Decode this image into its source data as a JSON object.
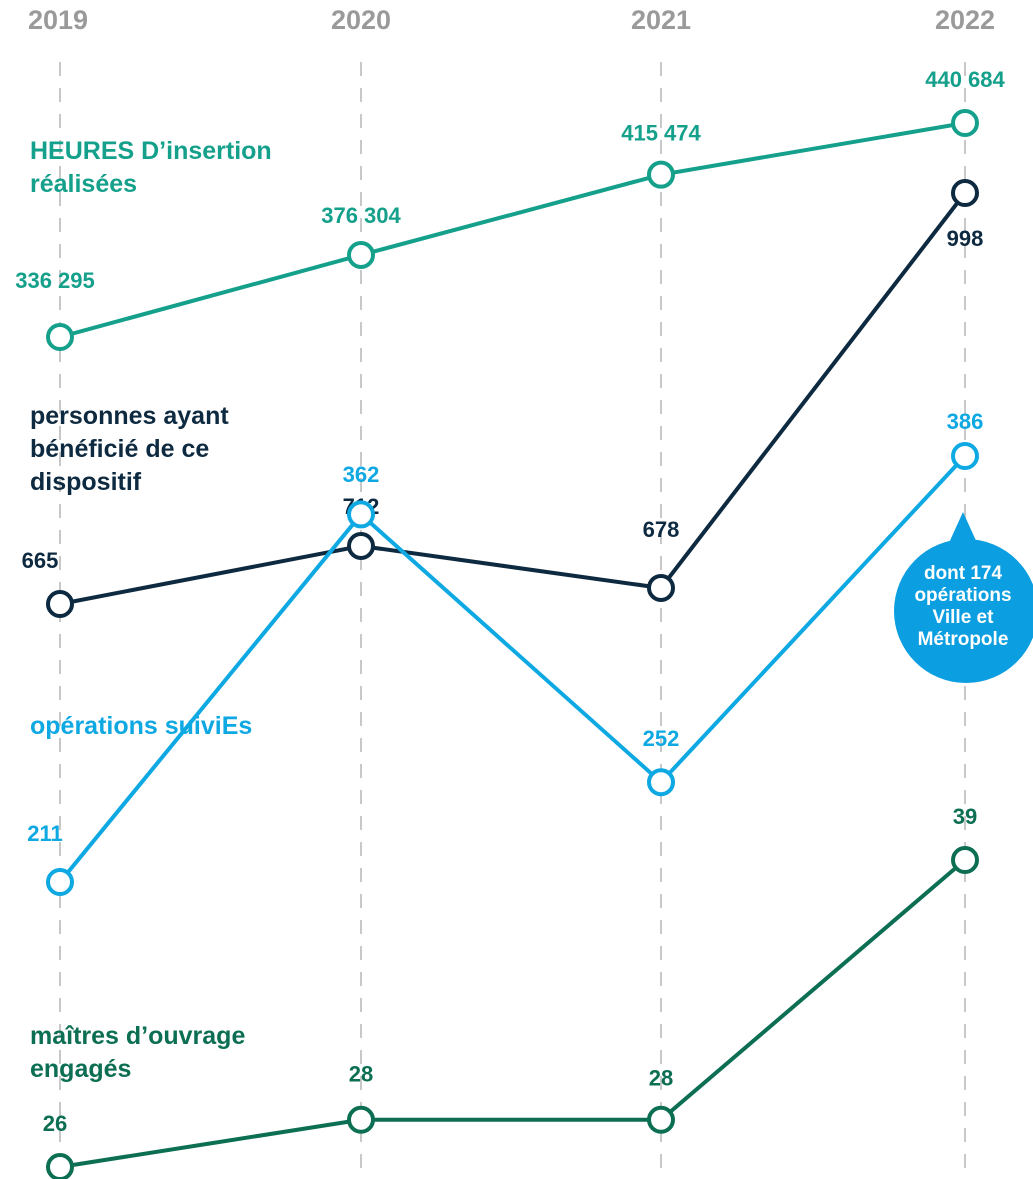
{
  "chart_data": {
    "type": "line",
    "x": [
      "2019",
      "2020",
      "2021",
      "2022"
    ],
    "series": [
      {
        "name": "HEURES D’insertion réalisées",
        "color": "#14a08b",
        "values": [
          336295,
          376304,
          415474,
          440684
        ],
        "value_labels": [
          "336 295",
          "376 304",
          "415 474",
          "440 684"
        ]
      },
      {
        "name": "personnes ayant bénéficié de ce dispositif",
        "color": "#0e2a40",
        "values": [
          665,
          712,
          678,
          998
        ]
      },
      {
        "name": "opérations suiviEs",
        "color": "#0ea8e2",
        "values": [
          211,
          362,
          252,
          386
        ]
      },
      {
        "name": "maîtres d’ouvrage engagés",
        "color": "#0c6e52",
        "values": [
          26,
          28,
          28,
          39
        ]
      }
    ],
    "annotation": "dont 174 opérations Ville et Métropole"
  }
}
